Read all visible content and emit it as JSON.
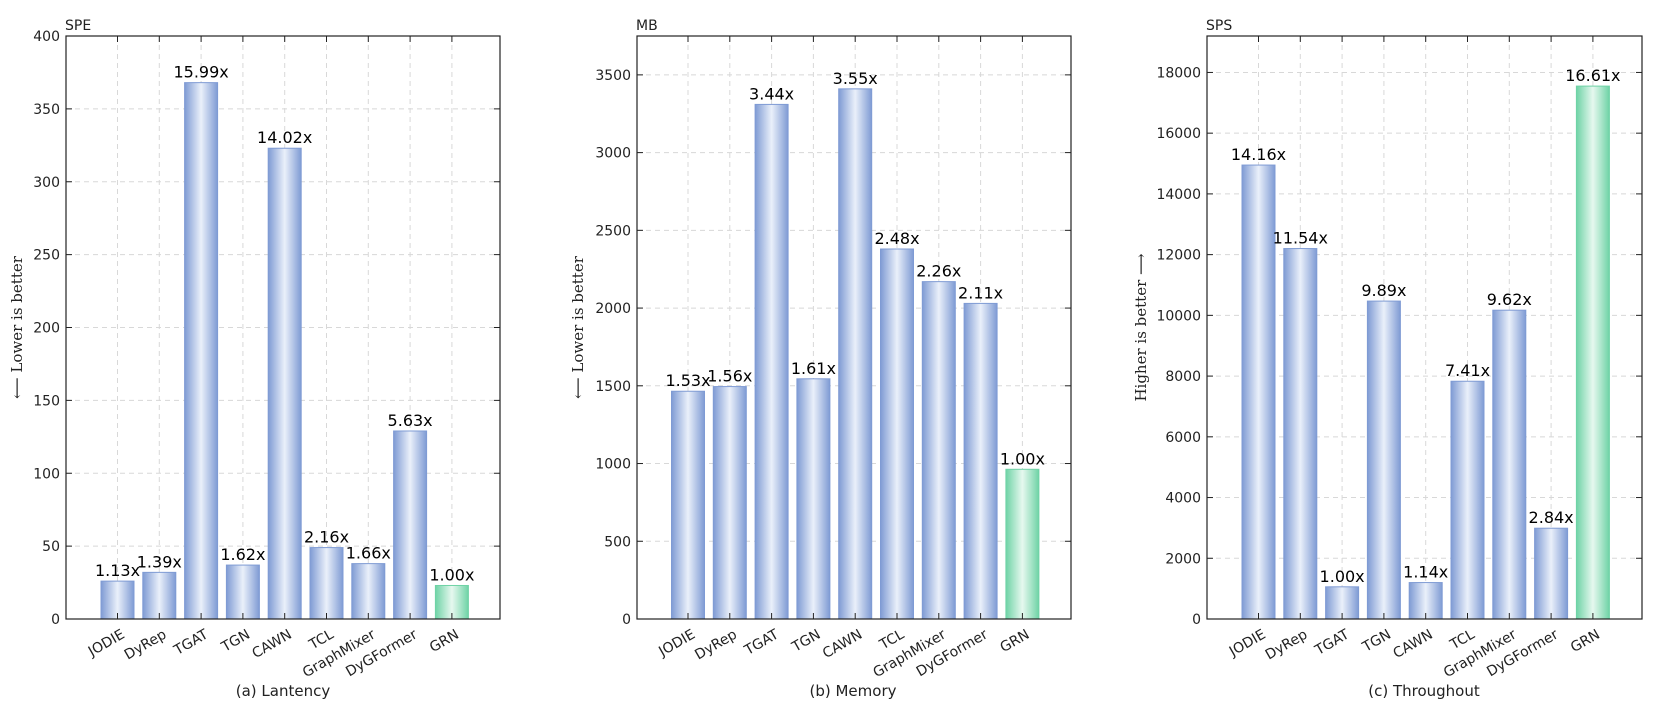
{
  "chart_data": [
    {
      "type": "bar",
      "caption": "(a) Lantency",
      "unit": "SPE",
      "ylabel": "⟵ Lower is better",
      "ylim": [
        0,
        400
      ],
      "yticks": [
        0,
        50,
        100,
        150,
        200,
        250,
        300,
        350,
        400
      ],
      "grid": true,
      "categories": [
        "JODIE",
        "DyRep",
        "TGAT",
        "TGN",
        "CAWN",
        "TCL",
        "GraphMixer",
        "DyGFormer",
        "GRN"
      ],
      "values": [
        26,
        32,
        368,
        37,
        323,
        49,
        38,
        129,
        23
      ],
      "labels": [
        "1.13x",
        "1.39x",
        "15.99x",
        "1.62x",
        "14.02x",
        "2.16x",
        "1.66x",
        "5.63x",
        "1.00x"
      ],
      "highlight": "GRN"
    },
    {
      "type": "bar",
      "caption": "(b) Memory",
      "unit": "MB",
      "ylabel": "⟵ Lower is better",
      "ylim": [
        0,
        3750
      ],
      "yticks": [
        0,
        500,
        1000,
        1500,
        2000,
        2500,
        3000,
        3500
      ],
      "grid": true,
      "categories": [
        "JODIE",
        "DyRep",
        "TGAT",
        "TGN",
        "CAWN",
        "TCL",
        "GraphMixer",
        "DyGFormer",
        "GRN"
      ],
      "values": [
        1465,
        1495,
        3310,
        1545,
        3410,
        2380,
        2170,
        2030,
        963
      ],
      "labels": [
        "1.53x",
        "1.56x",
        "3.44x",
        "1.61x",
        "3.55x",
        "2.48x",
        "2.26x",
        "2.11x",
        "1.00x"
      ],
      "highlight": "GRN"
    },
    {
      "type": "bar",
      "caption": "(c) Throughout",
      "unit": "SPS",
      "ylabel": "Higher is better ⟶",
      "ylim": [
        0,
        19200
      ],
      "yticks": [
        0,
        2000,
        4000,
        6000,
        8000,
        10000,
        12000,
        14000,
        16000,
        18000
      ],
      "grid": true,
      "categories": [
        "JODIE",
        "DyRep",
        "TGAT",
        "TGN",
        "CAWN",
        "TCL",
        "GraphMixer",
        "DyGFormer",
        "GRN"
      ],
      "values": [
        14950,
        12200,
        1060,
        10470,
        1200,
        7830,
        10170,
        2990,
        17550
      ],
      "labels": [
        "14.16x",
        "11.54x",
        "1.00x",
        "9.89x",
        "1.14x",
        "7.41x",
        "9.62x",
        "2.84x",
        "16.61x"
      ],
      "highlight": "GRN"
    }
  ],
  "colors": {
    "bar_edge": "#7f9bd4",
    "bar_center": "#eaf0fa",
    "highlight_edge": "#6fd3a6",
    "highlight_center": "#e6f8ef"
  }
}
